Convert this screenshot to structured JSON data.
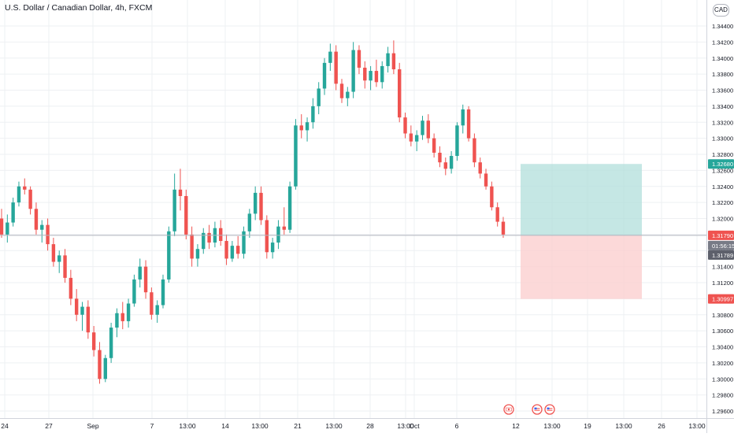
{
  "header": {
    "title": "U.S. Dollar / Canadian Dollar, 4h, FXCM",
    "currency": "CAD"
  },
  "colors": {
    "up": "#26a69a",
    "down": "#ef5350",
    "grid": "#eef0f3",
    "profit_zone": "#b2dfdb",
    "loss_zone": "#fbd0d0",
    "current_price_line": "#b2b5be",
    "axis_text": "#131722",
    "countdown_badge": "#787b86",
    "bar_badge": "#5d606b"
  },
  "chart_data": {
    "type": "candlestick",
    "title": "U.S. Dollar / Canadian Dollar, 4h, FXCM",
    "symbol": "USDCAD",
    "interval": "4h",
    "source": "FXCM",
    "ylim": [
      1.295,
      1.3452
    ],
    "y_ticks": [
      "1.34400",
      "1.34200",
      "1.34000",
      "1.33800",
      "1.33600",
      "1.33400",
      "1.33200",
      "1.33000",
      "1.32800",
      "1.32600",
      "1.32400",
      "1.32200",
      "1.32000",
      "1.31800",
      "1.31600",
      "1.31400",
      "1.31200",
      "1.31000",
      "1.30800",
      "1.30600",
      "1.30400",
      "1.30200",
      "1.30000",
      "1.29800",
      "1.29600"
    ],
    "x_ticks": [
      "24",
      "27",
      "Sep",
      "7",
      "13:00",
      "14",
      "13:00",
      "21",
      "13:00",
      "28",
      "13:00",
      "Oct",
      "6",
      "12",
      "13:00",
      "19",
      "13:00",
      "26",
      "13:00"
    ],
    "grid": true,
    "position_tool": {
      "entry": 1.3179,
      "target": 1.3268,
      "stop": 1.30997,
      "target_label": "1.32680",
      "stop_label": "1.30997"
    },
    "current_price": {
      "value": 1.3179,
      "label": "1.31790",
      "countdown": "01:56:15",
      "bar_close_label": "1.31789"
    },
    "event_markers": [
      "flag-canada-icon",
      "flag-usa-icon",
      "flag-usa-icon"
    ],
    "ohlc": [
      [
        1.32,
        1.3212,
        1.3176,
        1.318
      ],
      [
        1.318,
        1.3205,
        1.317,
        1.3195
      ],
      [
        1.3195,
        1.3226,
        1.319,
        1.322
      ],
      [
        1.322,
        1.3246,
        1.3215,
        1.324
      ],
      [
        1.324,
        1.325,
        1.323,
        1.3236
      ],
      [
        1.3236,
        1.324,
        1.3205,
        1.3212
      ],
      [
        1.3212,
        1.322,
        1.318,
        1.3186
      ],
      [
        1.3186,
        1.3198,
        1.317,
        1.3192
      ],
      [
        1.3192,
        1.32,
        1.316,
        1.3168
      ],
      [
        1.3168,
        1.3176,
        1.314,
        1.3146
      ],
      [
        1.3146,
        1.316,
        1.3132,
        1.3154
      ],
      [
        1.3154,
        1.3162,
        1.312,
        1.3126
      ],
      [
        1.3126,
        1.3136,
        1.3092,
        1.31
      ],
      [
        1.31,
        1.3112,
        1.3072,
        1.308
      ],
      [
        1.308,
        1.3096,
        1.306,
        1.309
      ],
      [
        1.309,
        1.3098,
        1.305,
        1.3058
      ],
      [
        1.3058,
        1.3066,
        1.3028,
        1.3036
      ],
      [
        1.3036,
        1.3046,
        1.2994,
        1.3
      ],
      [
        1.3,
        1.303,
        1.2996,
        1.3026
      ],
      [
        1.3026,
        1.307,
        1.302,
        1.3064
      ],
      [
        1.3064,
        1.3088,
        1.3052,
        1.3082
      ],
      [
        1.3082,
        1.3096,
        1.3062,
        1.3072
      ],
      [
        1.3072,
        1.31,
        1.3064,
        1.3094
      ],
      [
        1.3094,
        1.313,
        1.309,
        1.3124
      ],
      [
        1.3124,
        1.315,
        1.3114,
        1.314
      ],
      [
        1.314,
        1.3148,
        1.31,
        1.3108
      ],
      [
        1.3108,
        1.3114,
        1.3074,
        1.308
      ],
      [
        1.308,
        1.3098,
        1.307,
        1.3092
      ],
      [
        1.3092,
        1.313,
        1.3088,
        1.3124
      ],
      [
        1.3124,
        1.319,
        1.312,
        1.3184
      ],
      [
        1.3184,
        1.3256,
        1.3178,
        1.3236
      ],
      [
        1.3236,
        1.3262,
        1.321,
        1.3228
      ],
      [
        1.3228,
        1.3236,
        1.3174,
        1.318
      ],
      [
        1.318,
        1.319,
        1.314,
        1.315
      ],
      [
        1.315,
        1.3168,
        1.314,
        1.3162
      ],
      [
        1.3162,
        1.3188,
        1.3156,
        1.3182
      ],
      [
        1.3182,
        1.3192,
        1.3162,
        1.317
      ],
      [
        1.317,
        1.3196,
        1.3164,
        1.3188
      ],
      [
        1.3188,
        1.3198,
        1.3166,
        1.3172
      ],
      [
        1.3172,
        1.318,
        1.3142,
        1.315
      ],
      [
        1.315,
        1.3172,
        1.3146,
        1.3166
      ],
      [
        1.3166,
        1.3178,
        1.315,
        1.3156
      ],
      [
        1.3156,
        1.319,
        1.315,
        1.3184
      ],
      [
        1.3184,
        1.3212,
        1.3176,
        1.3206
      ],
      [
        1.3206,
        1.324,
        1.3198,
        1.3232
      ],
      [
        1.3232,
        1.324,
        1.3192,
        1.3198
      ],
      [
        1.3198,
        1.3204,
        1.315,
        1.3158
      ],
      [
        1.3158,
        1.3176,
        1.315,
        1.317
      ],
      [
        1.317,
        1.3198,
        1.3162,
        1.319
      ],
      [
        1.319,
        1.3214,
        1.318,
        1.3186
      ],
      [
        1.3186,
        1.3246,
        1.3182,
        1.324
      ],
      [
        1.324,
        1.3324,
        1.3236,
        1.3316
      ],
      [
        1.3316,
        1.333,
        1.33,
        1.331
      ],
      [
        1.331,
        1.3326,
        1.3296,
        1.332
      ],
      [
        1.332,
        1.335,
        1.3312,
        1.334
      ],
      [
        1.334,
        1.337,
        1.333,
        1.3362
      ],
      [
        1.3362,
        1.34,
        1.3354,
        1.3394
      ],
      [
        1.3394,
        1.3418,
        1.3384,
        1.3408
      ],
      [
        1.3408,
        1.3416,
        1.336,
        1.3368
      ],
      [
        1.3368,
        1.3374,
        1.3344,
        1.335
      ],
      [
        1.335,
        1.3364,
        1.334,
        1.3358
      ],
      [
        1.3358,
        1.342,
        1.335,
        1.341
      ],
      [
        1.341,
        1.3416,
        1.338,
        1.3388
      ],
      [
        1.3388,
        1.3396,
        1.3362,
        1.3372
      ],
      [
        1.3372,
        1.339,
        1.336,
        1.3384
      ],
      [
        1.3384,
        1.3398,
        1.3364,
        1.337
      ],
      [
        1.337,
        1.3396,
        1.3362,
        1.339
      ],
      [
        1.339,
        1.3414,
        1.3382,
        1.3406
      ],
      [
        1.3406,
        1.3422,
        1.338,
        1.3386
      ],
      [
        1.3386,
        1.3394,
        1.332,
        1.3326
      ],
      [
        1.3326,
        1.3332,
        1.33,
        1.3306
      ],
      [
        1.3306,
        1.3316,
        1.329,
        1.3296
      ],
      [
        1.3296,
        1.331,
        1.3284,
        1.3304
      ],
      [
        1.3304,
        1.3328,
        1.3298,
        1.3322
      ],
      [
        1.3322,
        1.333,
        1.3294,
        1.33
      ],
      [
        1.33,
        1.3306,
        1.3276,
        1.3282
      ],
      [
        1.3282,
        1.329,
        1.3264,
        1.327
      ],
      [
        1.327,
        1.3276,
        1.3254,
        1.3262
      ],
      [
        1.3262,
        1.3284,
        1.3256,
        1.3278
      ],
      [
        1.3278,
        1.332,
        1.3272,
        1.3316
      ],
      [
        1.3316,
        1.3342,
        1.3306,
        1.3336
      ],
      [
        1.3336,
        1.334,
        1.3296,
        1.33
      ],
      [
        1.33,
        1.3306,
        1.3264,
        1.327
      ],
      [
        1.327,
        1.3276,
        1.325,
        1.3256
      ],
      [
        1.3256,
        1.3262,
        1.3236,
        1.324
      ],
      [
        1.324,
        1.3246,
        1.321,
        1.3214
      ],
      [
        1.3214,
        1.322,
        1.319,
        1.3196
      ],
      [
        1.3196,
        1.3202,
        1.3176,
        1.318
      ]
    ]
  }
}
